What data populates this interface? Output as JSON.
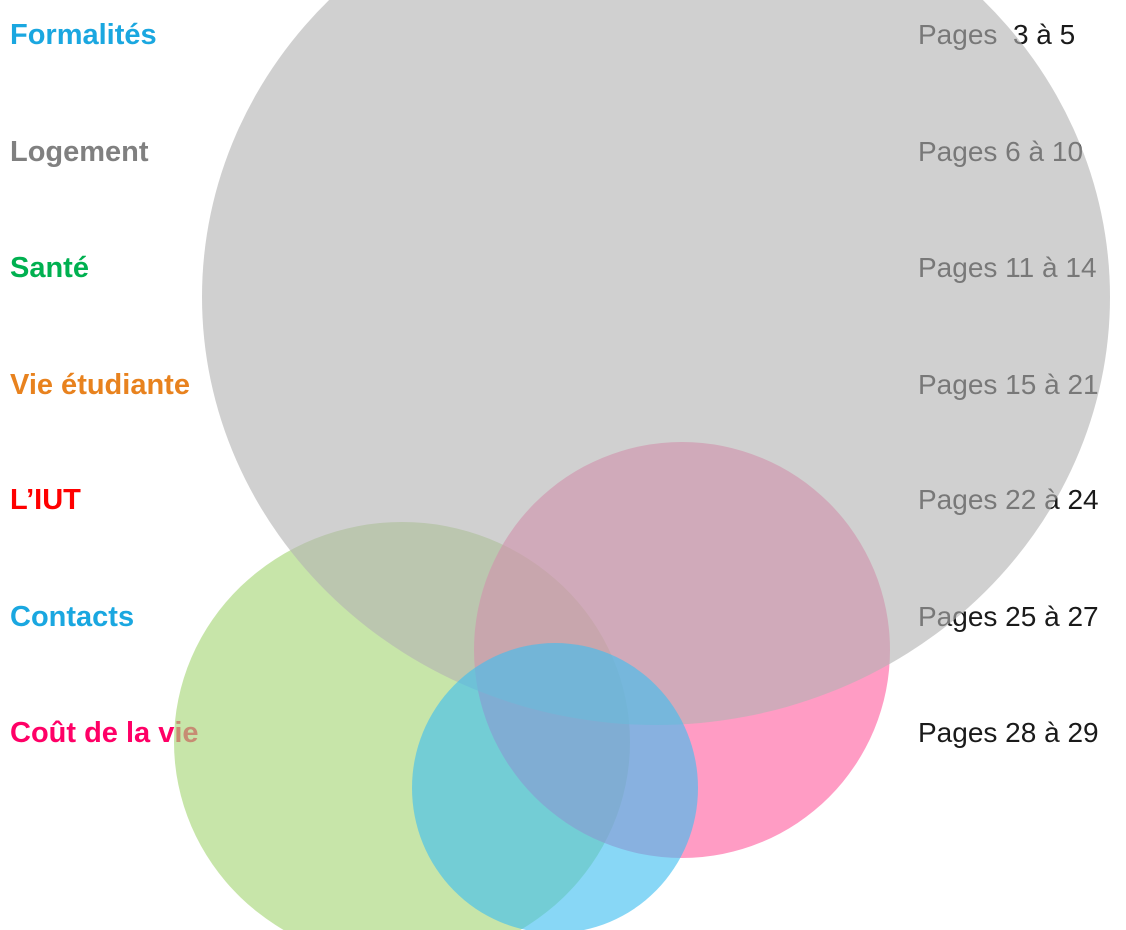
{
  "items": [
    {
      "title": "Formalités",
      "pages": "Pages  3 à 5"
    },
    {
      "title": "Logement",
      "pages": "Pages 6 à 10"
    },
    {
      "title": "Santé",
      "pages": "Pages 11 à 14"
    },
    {
      "title": "Vie étudiante",
      "pages": "Pages 15 à 21"
    },
    {
      "title": "L’IUT",
      "pages": "Pages 22 à 24"
    },
    {
      "title": "Contacts",
      "pages": "Pages 25 à 27"
    },
    {
      "title": "Coût de la vie",
      "pages": "Pages 28 à 29"
    }
  ]
}
